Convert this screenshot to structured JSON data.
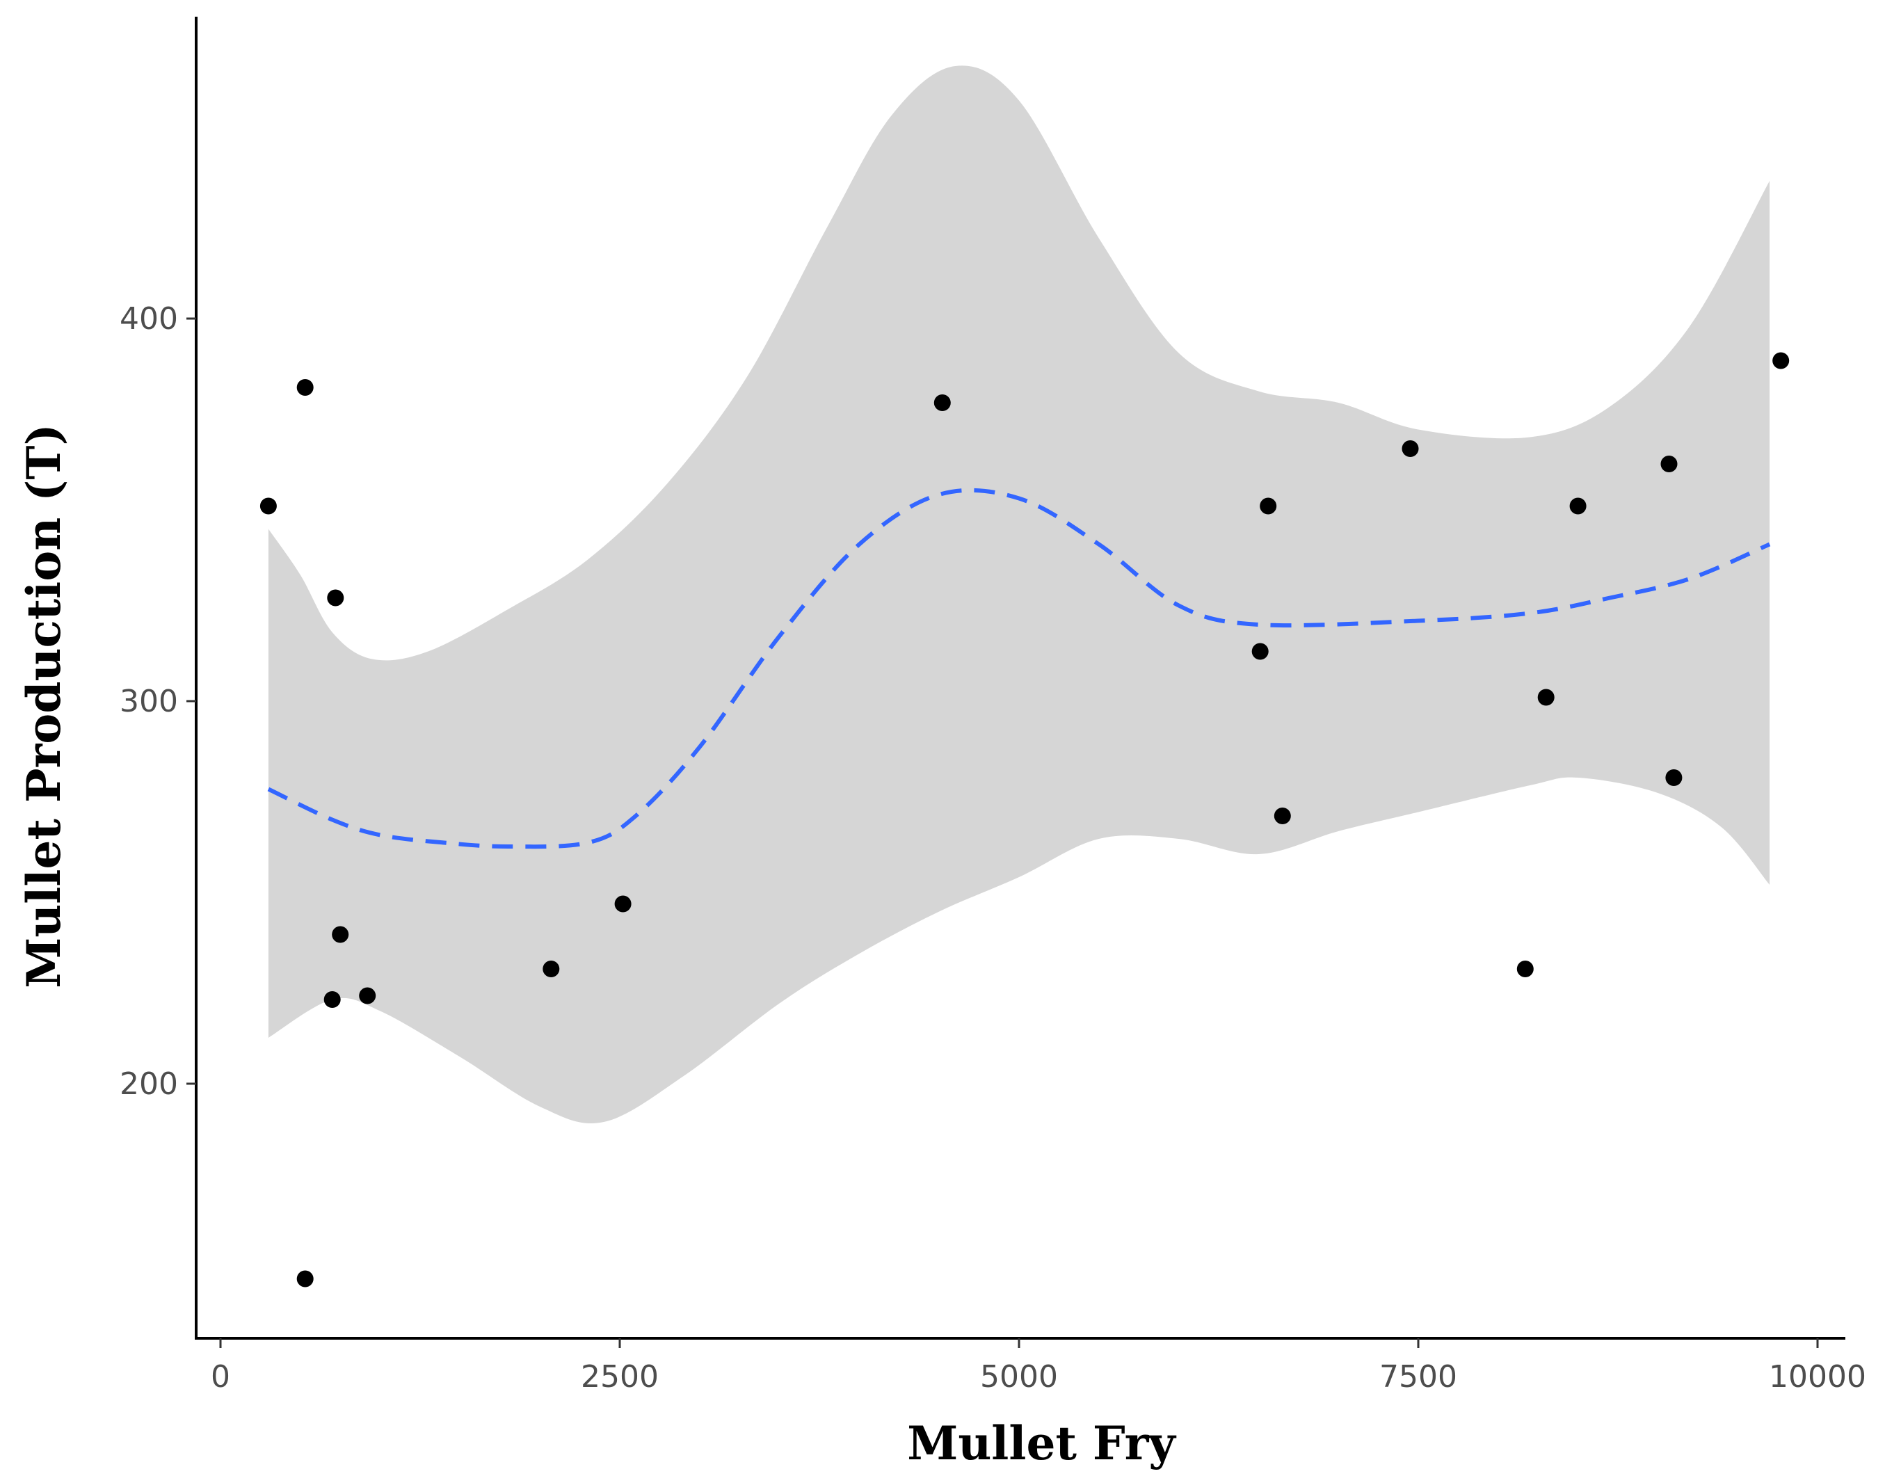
{
  "chart_data": {
    "type": "scatter",
    "xlabel": "Mullet Fry",
    "ylabel": "Mullet Production (T)",
    "xlim": [
      -150,
      10200
    ],
    "ylim": [
      135,
      480
    ],
    "x_ticks": [
      0,
      2500,
      5000,
      7500,
      10000
    ],
    "y_ticks": [
      200,
      300,
      400
    ],
    "grid": false,
    "legend": "none",
    "series": [
      {
        "type": "scatter",
        "points": [
          {
            "x": 300,
            "y": 351
          },
          {
            "x": 530,
            "y": 382
          },
          {
            "x": 530,
            "y": 149
          },
          {
            "x": 720,
            "y": 327
          },
          {
            "x": 700,
            "y": 222
          },
          {
            "x": 750,
            "y": 239
          },
          {
            "x": 920,
            "y": 223
          },
          {
            "x": 2070,
            "y": 230
          },
          {
            "x": 2520,
            "y": 247
          },
          {
            "x": 4520,
            "y": 378
          },
          {
            "x": 6510,
            "y": 313
          },
          {
            "x": 6560,
            "y": 351
          },
          {
            "x": 6650,
            "y": 270
          },
          {
            "x": 7450,
            "y": 366
          },
          {
            "x": 8170,
            "y": 230
          },
          {
            "x": 8300,
            "y": 301
          },
          {
            "x": 8500,
            "y": 351
          },
          {
            "x": 9070,
            "y": 362
          },
          {
            "x": 9100,
            "y": 280
          },
          {
            "x": 9770,
            "y": 389
          }
        ]
      },
      {
        "type": "smooth",
        "line_style": "dashed",
        "points": [
          {
            "x": 300,
            "y": 277
          },
          {
            "x": 700,
            "y": 269
          },
          {
            "x": 1000,
            "y": 265
          },
          {
            "x": 1400,
            "y": 263
          },
          {
            "x": 1800,
            "y": 262
          },
          {
            "x": 2300,
            "y": 263
          },
          {
            "x": 2600,
            "y": 270
          },
          {
            "x": 3000,
            "y": 288
          },
          {
            "x": 3500,
            "y": 317
          },
          {
            "x": 4000,
            "y": 341
          },
          {
            "x": 4500,
            "y": 354
          },
          {
            "x": 5000,
            "y": 353
          },
          {
            "x": 5500,
            "y": 341
          },
          {
            "x": 6000,
            "y": 325
          },
          {
            "x": 6500,
            "y": 320
          },
          {
            "x": 7500,
            "y": 321
          },
          {
            "x": 8200,
            "y": 323
          },
          {
            "x": 8700,
            "y": 327
          },
          {
            "x": 9200,
            "y": 332
          },
          {
            "x": 9700,
            "y": 341
          }
        ]
      },
      {
        "type": "confidence_band",
        "upper": [
          {
            "x": 300,
            "y": 345
          },
          {
            "x": 500,
            "y": 333
          },
          {
            "x": 700,
            "y": 318
          },
          {
            "x": 950,
            "y": 311
          },
          {
            "x": 1300,
            "y": 313
          },
          {
            "x": 1800,
            "y": 324
          },
          {
            "x": 2300,
            "y": 337
          },
          {
            "x": 2800,
            "y": 357
          },
          {
            "x": 3300,
            "y": 385
          },
          {
            "x": 3800,
            "y": 424
          },
          {
            "x": 4200,
            "y": 453
          },
          {
            "x": 4600,
            "y": 466
          },
          {
            "x": 5000,
            "y": 457
          },
          {
            "x": 5500,
            "y": 421
          },
          {
            "x": 6000,
            "y": 391
          },
          {
            "x": 6500,
            "y": 381
          },
          {
            "x": 7000,
            "y": 378
          },
          {
            "x": 7500,
            "y": 371
          },
          {
            "x": 8200,
            "y": 369
          },
          {
            "x": 8700,
            "y": 377
          },
          {
            "x": 9200,
            "y": 398
          },
          {
            "x": 9700,
            "y": 436
          }
        ],
        "lower": [
          {
            "x": 300,
            "y": 212
          },
          {
            "x": 700,
            "y": 222
          },
          {
            "x": 1000,
            "y": 219
          },
          {
            "x": 1500,
            "y": 207
          },
          {
            "x": 2000,
            "y": 194
          },
          {
            "x": 2400,
            "y": 190
          },
          {
            "x": 2900,
            "y": 202
          },
          {
            "x": 3500,
            "y": 221
          },
          {
            "x": 4000,
            "y": 234
          },
          {
            "x": 4500,
            "y": 245
          },
          {
            "x": 5000,
            "y": 254
          },
          {
            "x": 5500,
            "y": 264
          },
          {
            "x": 6000,
            "y": 264
          },
          {
            "x": 6500,
            "y": 260
          },
          {
            "x": 7000,
            "y": 266
          },
          {
            "x": 7500,
            "y": 271
          },
          {
            "x": 8200,
            "y": 278
          },
          {
            "x": 8500,
            "y": 280
          },
          {
            "x": 9000,
            "y": 276
          },
          {
            "x": 9400,
            "y": 267
          },
          {
            "x": 9700,
            "y": 252
          }
        ]
      }
    ]
  },
  "colors": {
    "band_fill": "#d6d6d6",
    "line": "#3366ff",
    "points": "#000000",
    "axis": "#000000",
    "tick_text": "#4d4d4d"
  }
}
